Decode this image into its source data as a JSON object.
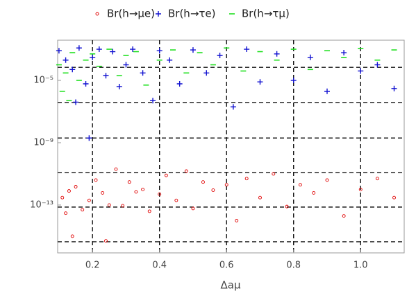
{
  "chart_data": {
    "type": "scatter",
    "x_label": "Δaμ",
    "log_y": true,
    "grid": true,
    "xlim": [
      0.096,
      1.13
    ],
    "ylim": [
      8.5e-17,
      0.0038
    ],
    "xticks": [
      0.2,
      0.4,
      0.6,
      0.8,
      {
        "value": 1,
        "label": "1.0"
      }
    ],
    "yticks": [
      {
        "value": 1e-05,
        "label": "10⁻⁵"
      },
      {
        "value": 1e-09,
        "label": "10⁻⁹"
      },
      {
        "value": 1e-13,
        "label": "10⁻¹³"
      }
    ],
    "grid_lines_y": [
      6.9e-05,
      3.8e-07,
      2e-09,
      1.2e-11,
      7.4e-14,
      4.4e-16
    ],
    "series": [
      {
        "name": "Br(h→μe)",
        "color": "#e00000",
        "marker": "circle",
        "x": [
          0.11,
          0.13,
          0.15,
          0.17,
          0.19,
          0.21,
          0.23,
          0.25,
          0.27,
          0.29,
          0.31,
          0.33,
          0.35,
          0.37,
          0.4,
          0.42,
          0.45,
          0.48,
          0.5,
          0.53,
          0.56,
          0.6,
          0.63,
          0.66,
          0.7,
          0.74,
          0.78,
          0.82,
          0.86,
          0.9,
          0.95,
          1.0,
          1.05,
          1.1,
          0.14,
          0.24,
          0.12
        ],
        "values": [
          3e-13,
          8e-13,
          1.5e-12,
          5e-14,
          2e-13,
          4e-12,
          6e-13,
          1e-13,
          2e-11,
          9e-14,
          3e-12,
          7e-13,
          1e-12,
          4e-14,
          5e-13,
          8e-12,
          2e-13,
          1.5e-11,
          6e-14,
          3e-12,
          9e-13,
          2e-12,
          1e-14,
          5e-12,
          3e-13,
          1e-11,
          8e-14,
          2e-12,
          6e-13,
          4e-12,
          2e-14,
          1e-12,
          5e-12,
          3e-13,
          1e-15,
          5e-16,
          3e-14
        ]
      },
      {
        "name": "Br(h→τe)",
        "color": "#1010d0",
        "marker": "plus",
        "x": [
          0.1,
          0.12,
          0.14,
          0.16,
          0.18,
          0.2,
          0.22,
          0.24,
          0.26,
          0.28,
          0.3,
          0.32,
          0.35,
          0.38,
          0.4,
          0.43,
          0.46,
          0.5,
          0.54,
          0.58,
          0.62,
          0.66,
          0.7,
          0.75,
          0.8,
          0.85,
          0.9,
          0.95,
          1.0,
          1.05,
          1.1,
          0.19,
          0.15
        ],
        "values": [
          0.0008,
          0.0002,
          5e-05,
          0.0012,
          6e-06,
          0.0003,
          0.001,
          2e-05,
          0.0007,
          4e-06,
          0.0001,
          0.001,
          3e-05,
          5e-07,
          0.0008,
          0.0002,
          6e-06,
          0.0009,
          3e-05,
          0.0004,
          2e-07,
          0.001,
          8e-06,
          0.0005,
          1e-05,
          0.0003,
          2e-06,
          0.0006,
          4e-05,
          0.0001,
          3e-06,
          2e-09,
          4e-07
        ]
      },
      {
        "name": "Br(h→τμ)",
        "color": "#20e020",
        "marker": "dash",
        "x": [
          0.1,
          0.12,
          0.14,
          0.16,
          0.18,
          0.2,
          0.22,
          0.25,
          0.28,
          0.3,
          0.33,
          0.36,
          0.4,
          0.44,
          0.48,
          0.52,
          0.56,
          0.6,
          0.65,
          0.7,
          0.75,
          0.8,
          0.85,
          0.9,
          0.95,
          1.0,
          1.05,
          1.1,
          0.11,
          0.13
        ],
        "values": [
          0.0001,
          3e-05,
          0.0006,
          1e-05,
          0.0002,
          0.0005,
          8e-05,
          0.001,
          2e-05,
          0.0004,
          0.0007,
          5e-06,
          0.0002,
          0.0009,
          3e-05,
          0.0006,
          0.0001,
          0.0012,
          4e-05,
          0.0007,
          0.0002,
          0.001,
          5e-05,
          0.0008,
          0.0003,
          0.0011,
          0.0002,
          0.0009,
          2e-06,
          5e-07
        ]
      }
    ]
  }
}
